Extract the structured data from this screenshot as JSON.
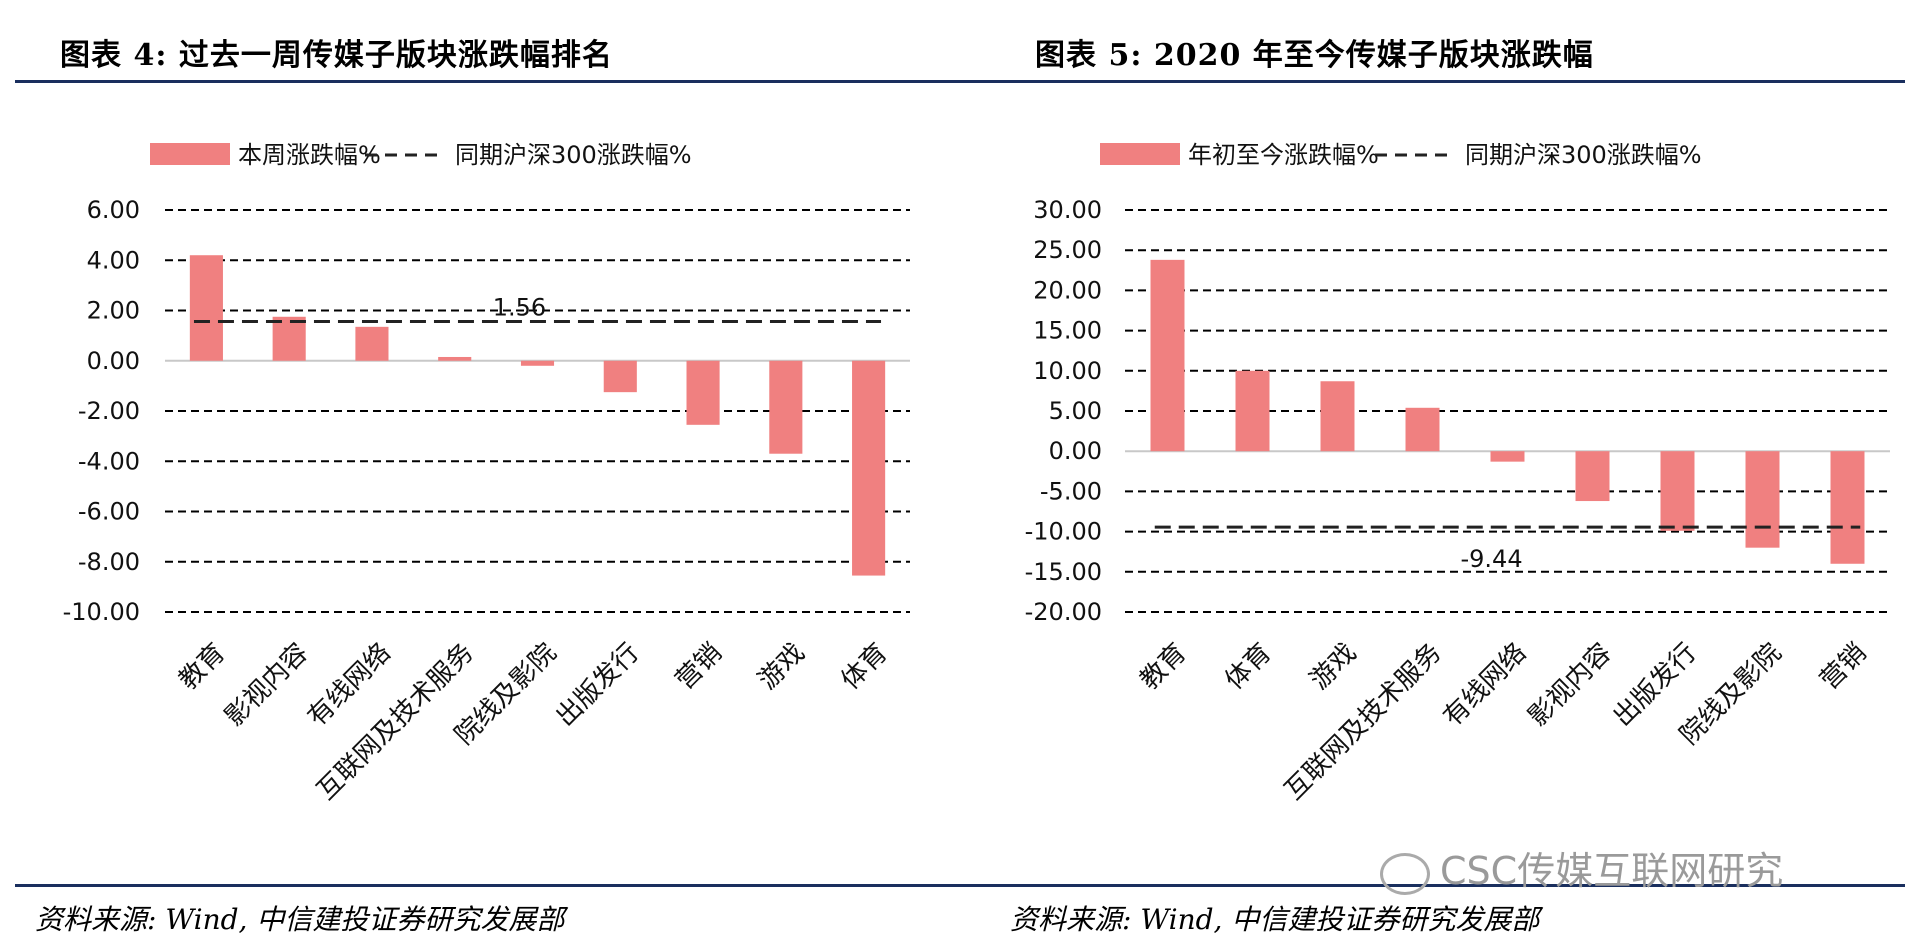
{
  "left": {
    "title": "图表 4:   过去一周传媒子版块涨跌幅排名",
    "source": "资料来源: Wind, 中信建投证券研究发展部"
  },
  "right": {
    "title": "图表 5:   2020 年至今传媒子版块涨跌幅",
    "source": "资料来源: Wind, 中信建投证券研究发展部"
  },
  "watermark": "CSC传媒互联网研究",
  "colors": {
    "bar": "#f08080",
    "rule": "#1a2f5e",
    "grid": "#000000"
  },
  "chart_data": [
    {
      "type": "bar",
      "categories": [
        "教育",
        "影视内容",
        "有线网络",
        "互联网及技术服务",
        "院线及影院",
        "出版发行",
        "营销",
        "游戏",
        "体育"
      ],
      "series": [
        {
          "name": "本周涨跌幅%",
          "values": [
            4.2,
            1.75,
            1.35,
            0.15,
            -0.2,
            -1.25,
            -2.55,
            -3.7,
            -8.55
          ]
        },
        {
          "name": "同期沪深300涨跌幅%",
          "values": [
            1.56,
            1.56,
            1.56,
            1.56,
            1.56,
            1.56,
            1.56,
            1.56,
            1.56
          ]
        }
      ],
      "yticks": [
        "6.00",
        "4.00",
        "2.00",
        "0.00",
        "-2.00",
        "-4.00",
        "-6.00",
        "-8.00",
        "-10.00"
      ],
      "ylim": [
        -10,
        6
      ],
      "annotation": "1.56",
      "grid": true,
      "legend": "top"
    },
    {
      "type": "bar",
      "categories": [
        "教育",
        "体育",
        "游戏",
        "互联网及技术服务",
        "有线网络",
        "影视内容",
        "出版发行",
        "院线及影院",
        "营销"
      ],
      "series": [
        {
          "name": "年初至今涨跌幅%",
          "values": [
            23.8,
            10.0,
            8.7,
            5.4,
            -1.3,
            -6.2,
            -9.9,
            -12.0,
            -14.0
          ]
        },
        {
          "name": "同期沪深300涨跌幅%",
          "values": [
            -9.44,
            -9.44,
            -9.44,
            -9.44,
            -9.44,
            -9.44,
            -9.44,
            -9.44,
            -9.44
          ]
        }
      ],
      "yticks": [
        "30.00",
        "25.00",
        "20.00",
        "15.00",
        "10.00",
        "5.00",
        "0.00",
        "-5.00",
        "-10.00",
        "-15.00",
        "-20.00"
      ],
      "ylim": [
        -20,
        30
      ],
      "annotation": "-9.44",
      "grid": true,
      "legend": "top"
    }
  ]
}
